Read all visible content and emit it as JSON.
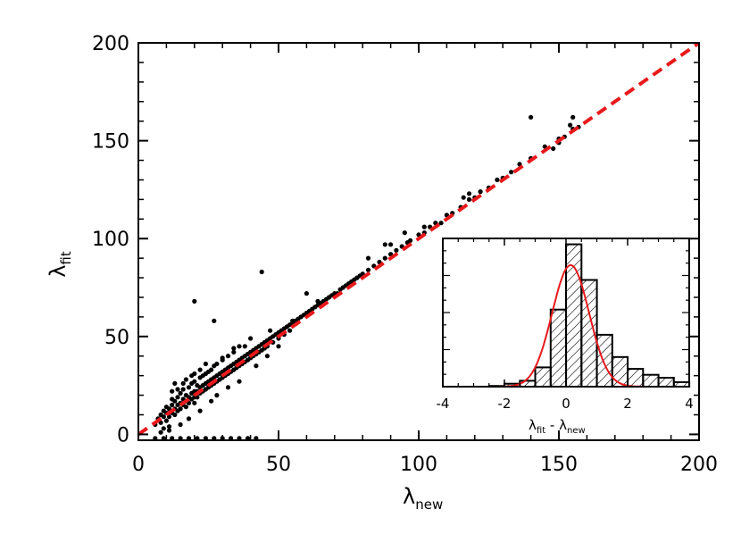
{
  "colors": {
    "points": "#000000",
    "fit_line": "#e8191c",
    "gaussian": "#e8191c",
    "axes": "#000000"
  },
  "chart_data": [
    {
      "type": "scatter",
      "title": "",
      "xlabel": {
        "symbol": "λ",
        "subscript": "new"
      },
      "ylabel": {
        "symbol": "λ",
        "subscript": "fit"
      },
      "xlim": [
        0,
        200
      ],
      "ylim": [
        -3,
        200
      ],
      "xticks": [
        "0",
        "50",
        "100",
        "150",
        "200"
      ],
      "yticks": [
        "0",
        "50",
        "100",
        "150",
        "200"
      ],
      "grid": false,
      "fit_line": {
        "style": "dashed",
        "color": "red",
        "points": [
          [
            0,
            0
          ],
          [
            200,
            200
          ]
        ]
      },
      "points": [
        [
          6,
          5
        ],
        [
          7,
          8
        ],
        [
          8,
          10
        ],
        [
          8,
          6
        ],
        [
          9,
          12
        ],
        [
          9,
          9
        ],
        [
          10,
          11
        ],
        [
          10,
          14
        ],
        [
          10,
          7
        ],
        [
          11,
          13
        ],
        [
          11,
          9
        ],
        [
          12,
          15
        ],
        [
          12,
          11
        ],
        [
          12,
          18
        ],
        [
          13,
          13
        ],
        [
          13,
          17
        ],
        [
          13,
          10
        ],
        [
          14,
          15
        ],
        [
          14,
          19
        ],
        [
          14,
          12
        ],
        [
          15,
          16
        ],
        [
          15,
          21
        ],
        [
          15,
          13
        ],
        [
          16,
          18
        ],
        [
          16,
          15
        ],
        [
          16,
          23
        ],
        [
          17,
          17
        ],
        [
          17,
          20
        ],
        [
          17,
          14
        ],
        [
          18,
          19
        ],
        [
          18,
          24
        ],
        [
          18,
          16
        ],
        [
          19,
          21
        ],
        [
          19,
          18
        ],
        [
          19,
          26
        ],
        [
          20,
          22
        ],
        [
          20,
          19
        ],
        [
          20,
          27
        ],
        [
          20,
          16
        ],
        [
          21,
          22
        ],
        [
          21,
          25
        ],
        [
          21,
          19
        ],
        [
          22,
          24
        ],
        [
          22,
          21
        ],
        [
          22,
          29
        ],
        [
          23,
          25
        ],
        [
          23,
          22
        ],
        [
          23,
          30
        ],
        [
          24,
          26
        ],
        [
          24,
          23
        ],
        [
          24,
          31
        ],
        [
          25,
          27
        ],
        [
          25,
          24
        ],
        [
          25,
          32
        ],
        [
          26,
          28
        ],
        [
          26,
          25
        ],
        [
          26,
          33
        ],
        [
          27,
          29
        ],
        [
          27,
          26
        ],
        [
          27,
          35
        ],
        [
          28,
          30
        ],
        [
          28,
          27
        ],
        [
          28,
          36
        ],
        [
          29,
          31
        ],
        [
          29,
          28
        ],
        [
          30,
          32
        ],
        [
          30,
          29
        ],
        [
          30,
          38
        ],
        [
          31,
          33
        ],
        [
          31,
          30
        ],
        [
          32,
          34
        ],
        [
          32,
          31
        ],
        [
          32,
          40
        ],
        [
          33,
          35
        ],
        [
          33,
          32
        ],
        [
          34,
          36
        ],
        [
          34,
          33
        ],
        [
          34,
          42
        ],
        [
          35,
          37
        ],
        [
          35,
          34
        ],
        [
          36,
          38
        ],
        [
          36,
          35
        ],
        [
          37,
          39
        ],
        [
          37,
          36
        ],
        [
          38,
          40
        ],
        [
          38,
          37
        ],
        [
          38,
          45
        ],
        [
          39,
          41
        ],
        [
          39,
          38
        ],
        [
          40,
          42
        ],
        [
          40,
          39
        ],
        [
          41,
          43
        ],
        [
          41,
          40
        ],
        [
          42,
          44
        ],
        [
          42,
          41
        ],
        [
          43,
          45
        ],
        [
          43,
          42
        ],
        [
          44,
          46
        ],
        [
          44,
          43
        ],
        [
          45,
          47
        ],
        [
          45,
          44
        ],
        [
          46,
          48
        ],
        [
          46,
          45
        ],
        [
          47,
          49
        ],
        [
          48,
          50
        ],
        [
          48,
          47
        ],
        [
          49,
          51
        ],
        [
          50,
          52
        ],
        [
          50,
          49
        ],
        [
          51,
          53
        ],
        [
          52,
          54
        ],
        [
          52,
          51
        ],
        [
          53,
          55
        ],
        [
          54,
          56
        ],
        [
          54,
          53
        ],
        [
          55,
          57
        ],
        [
          56,
          58
        ],
        [
          57,
          59
        ],
        [
          58,
          60
        ],
        [
          59,
          61
        ],
        [
          60,
          62
        ],
        [
          61,
          63
        ],
        [
          62,
          64
        ],
        [
          63,
          65
        ],
        [
          64,
          66
        ],
        [
          65,
          67
        ],
        [
          66,
          68
        ],
        [
          67,
          69
        ],
        [
          68,
          70
        ],
        [
          69,
          71
        ],
        [
          70,
          72
        ],
        [
          71,
          72
        ],
        [
          72,
          74
        ],
        [
          73,
          75
        ],
        [
          74,
          76
        ],
        [
          75,
          77
        ],
        [
          76,
          78
        ],
        [
          77,
          79
        ],
        [
          78,
          80
        ],
        [
          79,
          81
        ],
        [
          80,
          82
        ],
        [
          82,
          84
        ],
        [
          84,
          86
        ],
        [
          86,
          88
        ],
        [
          88,
          90
        ],
        [
          90,
          92
        ],
        [
          92,
          94
        ],
        [
          94,
          96
        ],
        [
          96,
          98
        ],
        [
          97,
          99
        ],
        [
          100,
          102
        ],
        [
          102,
          103
        ],
        [
          104,
          106
        ],
        [
          106,
          108
        ],
        [
          108,
          108
        ],
        [
          110,
          112
        ],
        [
          112,
          113
        ],
        [
          115,
          116
        ],
        [
          118,
          120
        ],
        [
          120,
          121
        ],
        [
          122,
          124
        ],
        [
          125,
          126
        ],
        [
          128,
          130
        ],
        [
          130,
          131
        ],
        [
          133,
          134
        ],
        [
          136,
          138
        ],
        [
          140,
          141
        ],
        [
          145,
          147
        ],
        [
          150,
          151
        ],
        [
          152,
          152
        ],
        [
          155,
          156
        ],
        [
          157,
          157
        ],
        [
          148,
          146
        ],
        [
          116,
          121
        ],
        [
          102,
          106
        ],
        [
          88,
          97
        ],
        [
          44,
          83
        ],
        [
          20,
          68
        ],
        [
          27,
          58
        ],
        [
          60,
          72
        ],
        [
          64,
          68
        ],
        [
          82,
          90
        ],
        [
          90,
          97
        ],
        [
          95,
          103
        ],
        [
          118,
          123
        ],
        [
          150,
          149
        ],
        [
          155,
          162
        ],
        [
          154,
          158
        ],
        [
          140,
          162
        ],
        [
          13,
          26
        ],
        [
          14,
          23
        ],
        [
          17,
          28
        ],
        [
          19,
          30
        ],
        [
          22,
          33
        ],
        [
          24,
          36
        ],
        [
          18,
          8
        ],
        [
          22,
          12
        ],
        [
          26,
          17
        ],
        [
          15,
          5
        ],
        [
          11,
          4
        ],
        [
          9,
          3
        ],
        [
          30,
          39
        ],
        [
          34,
          44
        ],
        [
          36,
          45
        ],
        [
          40,
          49
        ],
        [
          47,
          53
        ],
        [
          55,
          58
        ],
        [
          12,
          22
        ],
        [
          16,
          26
        ],
        [
          20,
          31
        ],
        [
          6,
          -2
        ],
        [
          9,
          -2
        ],
        [
          12,
          -2
        ],
        [
          15,
          -2
        ],
        [
          18,
          -2
        ],
        [
          21,
          -2
        ],
        [
          24,
          -2
        ],
        [
          27,
          -2
        ],
        [
          30,
          -2
        ],
        [
          33,
          -2
        ],
        [
          36,
          -2
        ],
        [
          39,
          -2
        ],
        [
          42,
          -2
        ],
        [
          8,
          1
        ],
        [
          11,
          2
        ],
        [
          28,
          20
        ],
        [
          32,
          24
        ],
        [
          36,
          27
        ],
        [
          42,
          35
        ],
        [
          46,
          40
        ],
        [
          50,
          45
        ]
      ]
    },
    {
      "type": "bar",
      "title": "",
      "xlabel": {
        "parts": [
          {
            "symbol": "λ",
            "subscript": "fit"
          },
          {
            "symbol": "λ",
            "subscript": "new"
          }
        ],
        "separator": " - "
      },
      "ylabel": "",
      "xlim": [
        -4,
        4
      ],
      "xticks": [
        "-4",
        "-2",
        "0",
        "2",
        "4"
      ],
      "bin_width": 0.5,
      "bin_edges": [
        -4,
        -3.5,
        -3,
        -2.5,
        -2,
        -1.5,
        -1,
        -0.5,
        0,
        0.5,
        1,
        1.5,
        2,
        2.5,
        3,
        3.5,
        4
      ],
      "values": [
        0.0,
        0.0,
        0.0,
        0.005,
        0.02,
        0.04,
        0.13,
        0.52,
        0.96,
        0.72,
        0.35,
        0.2,
        0.12,
        0.08,
        0.06,
        0.03
      ],
      "fill": "hatched",
      "gaussian_fit": {
        "mu": 0.15,
        "sigma": 0.6,
        "peak": 0.82,
        "color": "red"
      }
    }
  ]
}
